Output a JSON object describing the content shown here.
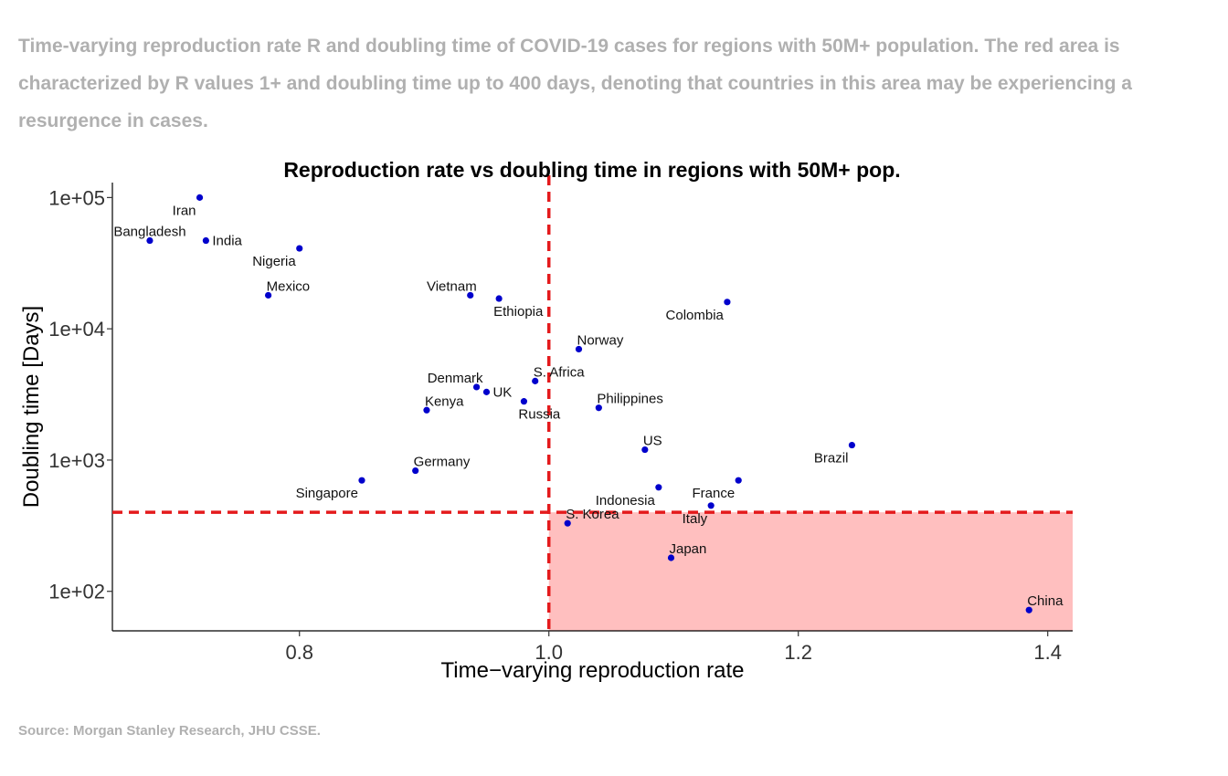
{
  "caption": "Time-varying reproduction rate R and doubling time of COVID-19 cases for regions with 50M+ population. The red area is characterized by R values 1+ and doubling time up to 400 days, denoting that countries in this area may be experiencing a resurgence in cases.",
  "source": "Source: Morgan Stanley Research, JHU CSSE.",
  "chart_data": {
    "type": "scatter",
    "title": "Reproduction rate vs doubling time in regions with 50M+ pop.",
    "xlabel": "Time−varying reproduction rate",
    "ylabel": "Doubling time [Days]",
    "xlim": [
      0.65,
      1.42
    ],
    "ylim": [
      50,
      130000
    ],
    "y_scale": "log",
    "x_ticks": [
      {
        "value": 0.8,
        "label": "0.8"
      },
      {
        "value": 1.0,
        "label": "1.0"
      },
      {
        "value": 1.2,
        "label": "1.2"
      },
      {
        "value": 1.4,
        "label": "1.4"
      }
    ],
    "y_ticks": [
      {
        "value": 100,
        "label": "1e+02"
      },
      {
        "value": 1000,
        "label": "1e+03"
      },
      {
        "value": 10000,
        "label": "1e+04"
      },
      {
        "value": 100000,
        "label": "1e+05"
      }
    ],
    "grid": false,
    "thresholds": {
      "x": 1.0,
      "y": 400,
      "color": "#e41a1c"
    },
    "highlight_region": {
      "x_min": 1.0,
      "y_max": 400,
      "color": "#ffbfbf"
    },
    "point_color": "#0000cc",
    "points": [
      {
        "label": "Iran",
        "x": 0.72,
        "y": 100000,
        "anchor": "below-left"
      },
      {
        "label": "Bangladesh",
        "x": 0.68,
        "y": 47000,
        "anchor": "above"
      },
      {
        "label": "India",
        "x": 0.725,
        "y": 47000,
        "anchor": "right"
      },
      {
        "label": "Nigeria",
        "x": 0.8,
        "y": 41000,
        "anchor": "below-left"
      },
      {
        "label": "Mexico",
        "x": 0.775,
        "y": 18000,
        "anchor": "above-right"
      },
      {
        "label": "Vietnam",
        "x": 0.937,
        "y": 18000,
        "anchor": "above-left"
      },
      {
        "label": "Ethiopia",
        "x": 0.96,
        "y": 17000,
        "anchor": "below-right"
      },
      {
        "label": "Colombia",
        "x": 1.143,
        "y": 16000,
        "anchor": "below-left"
      },
      {
        "label": "Norway",
        "x": 1.024,
        "y": 7000,
        "anchor": "above-right"
      },
      {
        "label": "Denmark",
        "x": 0.942,
        "y": 3600,
        "anchor": "above-left"
      },
      {
        "label": "S. Africa",
        "x": 0.989,
        "y": 4000,
        "anchor": "above-right"
      },
      {
        "label": "UK",
        "x": 0.95,
        "y": 3300,
        "anchor": "right"
      },
      {
        "label": "Kenya",
        "x": 0.902,
        "y": 2400,
        "anchor": "above-right"
      },
      {
        "label": "Russia",
        "x": 0.98,
        "y": 2800,
        "anchor": "below-right"
      },
      {
        "label": "Philippines",
        "x": 1.04,
        "y": 2500,
        "anchor": "above-right"
      },
      {
        "label": "US",
        "x": 1.077,
        "y": 1200,
        "anchor": "above-right"
      },
      {
        "label": "Brazil",
        "x": 1.243,
        "y": 1300,
        "anchor": "below-left"
      },
      {
        "label": "Germany",
        "x": 0.893,
        "y": 830,
        "anchor": "above-right"
      },
      {
        "label": "Singapore",
        "x": 0.85,
        "y": 700,
        "anchor": "below-left"
      },
      {
        "label": "Indonesia",
        "x": 1.088,
        "y": 620,
        "anchor": "below-left"
      },
      {
        "label": "France",
        "x": 1.152,
        "y": 700,
        "anchor": "below-left"
      },
      {
        "label": "Italy",
        "x": 1.13,
        "y": 450,
        "anchor": "below-left"
      },
      {
        "label": "S. Korea",
        "x": 1.015,
        "y": 330,
        "anchor": "above-right"
      },
      {
        "label": "Japan",
        "x": 1.098,
        "y": 180,
        "anchor": "above-right"
      },
      {
        "label": "China",
        "x": 1.385,
        "y": 72,
        "anchor": "above-right"
      }
    ]
  }
}
